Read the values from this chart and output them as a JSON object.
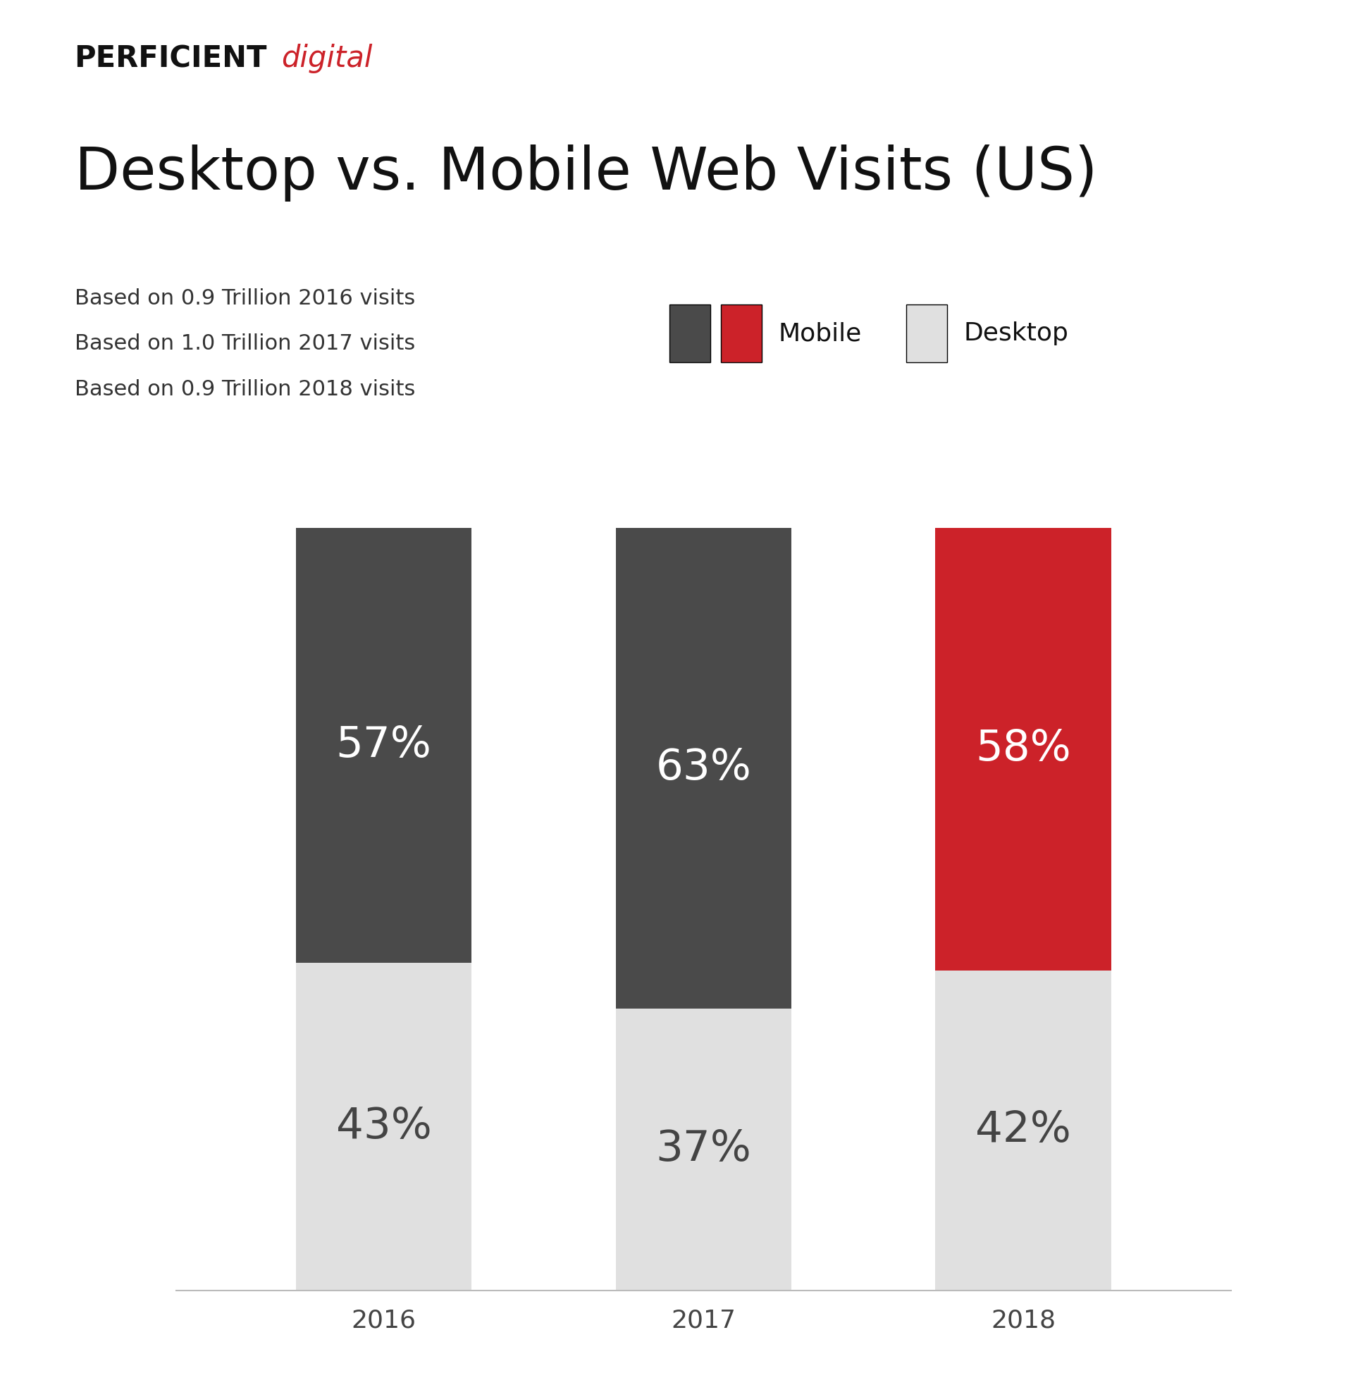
{
  "title": "Desktop vs. Mobile Web Visits (US)",
  "subtitle_lines": [
    "Based on 0.9 Trillion 2016 visits",
    "Based on 1.0 Trillion 2017 visits",
    "Based on 0.9 Trillion 2018 visits"
  ],
  "years": [
    "2016",
    "2017",
    "2018"
  ],
  "mobile_pct": [
    57,
    63,
    58
  ],
  "desktop_pct": [
    43,
    37,
    42
  ],
  "mobile_colors": [
    "#4a4a4a",
    "#4a4a4a",
    "#cc2229"
  ],
  "desktop_color": "#e0e0e0",
  "dark_color": "#4a4a4a",
  "red_color": "#cc2229",
  "bar_width": 0.55,
  "background_color": "#ffffff",
  "title_fontsize": 60,
  "subtitle_fontsize": 22,
  "bar_label_fontsize": 44,
  "axis_label_fontsize": 26,
  "legend_fontsize": 26,
  "brand_perficient_fontsize": 30,
  "brand_digital_fontsize": 30
}
